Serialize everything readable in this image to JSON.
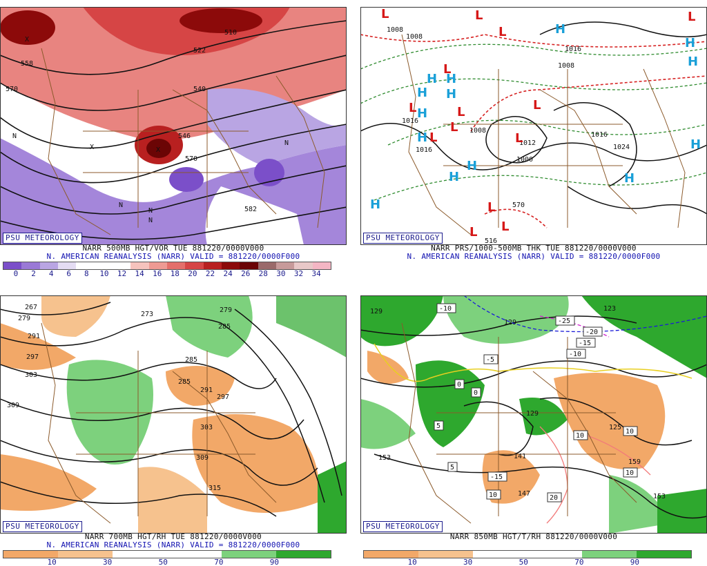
{
  "panels": {
    "vor500": {
      "badge": "PSU METEOROLOGY",
      "caption_line1": "NARR 500MB HGT/VOR TUE 881220/0000V000",
      "caption_line2": "N. AMERICAN REANALYSIS (NARR) VALID = 881220/0000F000",
      "scale_labels": [
        "0",
        "2",
        "4",
        "6",
        "8",
        "10",
        "12",
        "14",
        "16",
        "18",
        "20",
        "22",
        "24",
        "26",
        "28",
        "30",
        "32",
        "34"
      ],
      "scale_colors": [
        "#7b4fc9",
        "#9a79d6",
        "#b9a5e3",
        "#e4dcf3",
        "#ffffff",
        "#ffffff",
        "#ffffff",
        "#f6c3bd",
        "#ee9a93",
        "#e46f6a",
        "#d64545",
        "#b82020",
        "#8c0a0a",
        "#6b0505",
        "#9a6a6a",
        "#c79a9a",
        "#e8c8c8",
        "#f4b6c4"
      ],
      "contour_labels": [
        "558",
        "570",
        "510",
        "522",
        "540",
        "546",
        "570",
        "582"
      ],
      "markers": [
        "N",
        "N",
        "N",
        "N",
        "N",
        "X",
        "X",
        "X"
      ]
    },
    "prs": {
      "badge": "PSU METEOROLOGY",
      "caption_line1": "NARR PRS/1000-500MB THK TUE 881220/0000V000",
      "caption_line2": "N. AMERICAN REANALYSIS (NARR) VALID = 881220/0000F000",
      "contour_labels": [
        "1008",
        "1008",
        "1016",
        "1008",
        "1016",
        "1016",
        "1008",
        "1000",
        "1012",
        "1016",
        "1024",
        "570",
        "516"
      ],
      "highs": [
        "H",
        "H",
        "H",
        "H",
        "H",
        "H",
        "H",
        "H",
        "H",
        "H",
        "H",
        "H",
        "H",
        "H"
      ],
      "lows": [
        "L",
        "L",
        "L",
        "L",
        "L",
        "L",
        "L",
        "L",
        "L",
        "L",
        "L",
        "L",
        "L",
        "L"
      ]
    },
    "rh700": {
      "badge": "PSU METEOROLOGY",
      "caption_line1": "NARR 700MB HGT/RH TUE 881220/0000V000",
      "caption_line2": "N. AMERICAN REANALYSIS (NARR) VALID = 881220/0000F000",
      "scale_labels": [
        "10",
        "30",
        "50",
        "70",
        "90"
      ],
      "scale_colors": [
        "#f2a868",
        "#f6c28e",
        "#ffffff",
        "#ffffff",
        "#7dd17d",
        "#2ea82e"
      ],
      "contour_labels": [
        "279",
        "285",
        "291",
        "273",
        "297",
        "279",
        "303",
        "285",
        "291",
        "297",
        "309",
        "285",
        "303",
        "309",
        "315",
        "267"
      ]
    },
    "t850": {
      "badge": "PSU METEOROLOGY",
      "caption_line1": "NARR 850MB HGT/T/RH 881220/0000V000",
      "caption_line2": "",
      "scale_labels": [
        "10",
        "30",
        "50",
        "70",
        "90"
      ],
      "scale_colors": [
        "#f2a868",
        "#f6c28e",
        "#ffffff",
        "#ffffff",
        "#7dd17d",
        "#2ea82e"
      ],
      "contour_labels": [
        "129",
        "129",
        "125",
        "153",
        "141",
        "147",
        "129",
        "159",
        "153",
        "123"
      ],
      "temp_boxes": [
        "-10",
        "-25",
        "-20",
        "-15",
        "-10",
        "-5",
        "0",
        "0",
        "5",
        "5",
        "-15",
        "10",
        "10",
        "10",
        "10",
        "20"
      ]
    }
  }
}
